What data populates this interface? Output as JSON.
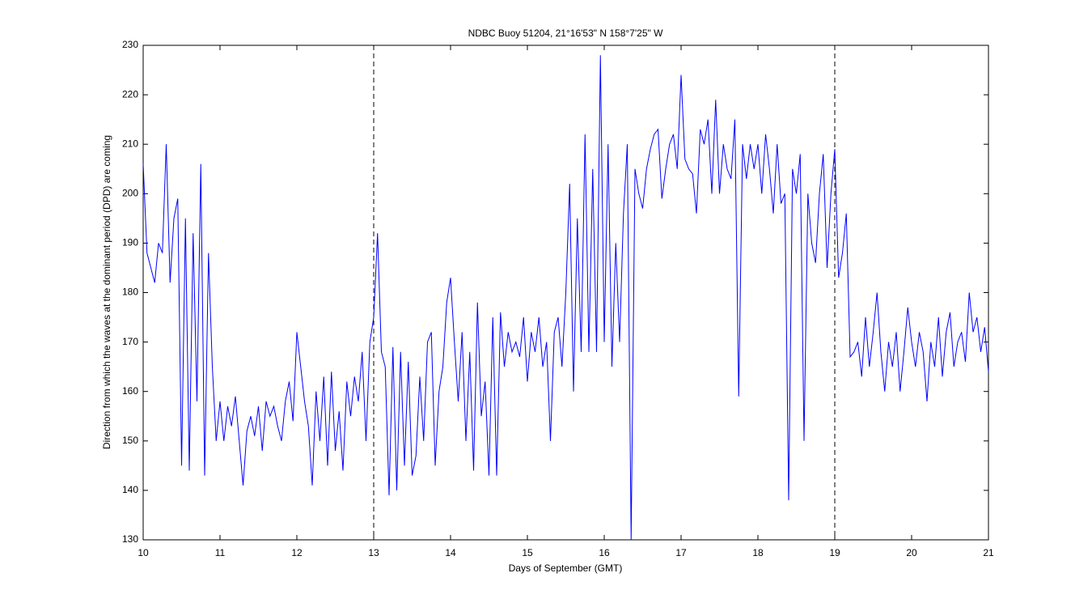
{
  "chart_data": {
    "type": "line",
    "title": "NDBC Buoy 51204, 21°16'53\" N 158°7'25\" W",
    "xlabel": "Days of September (GMT)",
    "ylabel": "Direction from which the waves at the dominant period (DPD) are coming",
    "color": "#0000ff",
    "xlim": [
      10,
      21
    ],
    "ylim": [
      130,
      230
    ],
    "xticks": [
      10,
      11,
      12,
      13,
      14,
      15,
      16,
      17,
      18,
      19,
      20,
      21
    ],
    "yticks": [
      130,
      140,
      150,
      160,
      170,
      180,
      190,
      200,
      210,
      220,
      230
    ],
    "vlines": [
      13,
      19
    ],
    "x": [
      10.0,
      10.05,
      10.1,
      10.15,
      10.2,
      10.25,
      10.3,
      10.35,
      10.4,
      10.45,
      10.5,
      10.55,
      10.6,
      10.65,
      10.7,
      10.75,
      10.8,
      10.85,
      10.9,
      10.95,
      11.0,
      11.05,
      11.1,
      11.15,
      11.2,
      11.25,
      11.3,
      11.35,
      11.4,
      11.45,
      11.5,
      11.55,
      11.6,
      11.65,
      11.7,
      11.75,
      11.8,
      11.85,
      11.9,
      11.95,
      12.0,
      12.05,
      12.1,
      12.15,
      12.2,
      12.25,
      12.3,
      12.35,
      12.4,
      12.45,
      12.5,
      12.55,
      12.6,
      12.65,
      12.7,
      12.75,
      12.8,
      12.85,
      12.9,
      12.95,
      13.0,
      13.05,
      13.1,
      13.15,
      13.2,
      13.25,
      13.3,
      13.35,
      13.4,
      13.45,
      13.5,
      13.55,
      13.6,
      13.65,
      13.7,
      13.75,
      13.8,
      13.85,
      13.9,
      13.95,
      14.0,
      14.05,
      14.1,
      14.15,
      14.2,
      14.25,
      14.3,
      14.35,
      14.4,
      14.45,
      14.5,
      14.55,
      14.6,
      14.65,
      14.7,
      14.75,
      14.8,
      14.85,
      14.9,
      14.95,
      15.0,
      15.05,
      15.1,
      15.15,
      15.2,
      15.25,
      15.3,
      15.35,
      15.4,
      15.45,
      15.5,
      15.55,
      15.6,
      15.65,
      15.7,
      15.75,
      15.8,
      15.85,
      15.9,
      15.95,
      16.0,
      16.05,
      16.1,
      16.15,
      16.2,
      16.25,
      16.3,
      16.35,
      16.4,
      16.45,
      16.5,
      16.55,
      16.6,
      16.65,
      16.7,
      16.75,
      16.8,
      16.85,
      16.9,
      16.95,
      17.0,
      17.05,
      17.1,
      17.15,
      17.2,
      17.25,
      17.3,
      17.35,
      17.4,
      17.45,
      17.5,
      17.55,
      17.6,
      17.65,
      17.7,
      17.75,
      17.8,
      17.85,
      17.9,
      17.95,
      18.0,
      18.05,
      18.1,
      18.15,
      18.2,
      18.25,
      18.3,
      18.35,
      18.4,
      18.45,
      18.5,
      18.55,
      18.6,
      18.65,
      18.7,
      18.75,
      18.8,
      18.85,
      18.9,
      18.95,
      19.0,
      19.05,
      19.1,
      19.15,
      19.2,
      19.25,
      19.3,
      19.35,
      19.4,
      19.45,
      19.5,
      19.55,
      19.6,
      19.65,
      19.7,
      19.75,
      19.8,
      19.85,
      19.9,
      19.95,
      20.0,
      20.05,
      20.1,
      20.15,
      20.2,
      20.25,
      20.3,
      20.35,
      20.4,
      20.45,
      20.5,
      20.55,
      20.6,
      20.65,
      20.7,
      20.75,
      20.8,
      20.85,
      20.9,
      20.95,
      21.0
    ],
    "values": [
      206,
      188,
      185,
      182,
      190,
      188,
      210,
      182,
      195,
      199,
      145,
      195,
      144,
      192,
      158,
      206,
      143,
      188,
      165,
      150,
      158,
      150,
      157,
      153,
      159,
      150,
      141,
      152,
      155,
      151,
      157,
      148,
      158,
      155,
      157,
      153,
      150,
      158,
      162,
      154,
      172,
      165,
      158,
      153,
      141,
      160,
      150,
      163,
      145,
      164,
      148,
      156,
      144,
      162,
      155,
      163,
      158,
      168,
      150,
      170,
      175,
      192,
      168,
      165,
      139,
      169,
      140,
      168,
      145,
      166,
      143,
      147,
      163,
      150,
      170,
      172,
      145,
      160,
      165,
      178,
      183,
      170,
      158,
      172,
      150,
      168,
      144,
      178,
      155,
      162,
      143,
      175,
      143,
      176,
      165,
      172,
      168,
      170,
      167,
      175,
      162,
      172,
      168,
      175,
      165,
      170,
      150,
      172,
      175,
      165,
      180,
      202,
      160,
      195,
      168,
      212,
      168,
      205,
      168,
      228,
      170,
      210,
      165,
      190,
      170,
      196,
      210,
      130,
      205,
      200,
      197,
      205,
      209,
      212,
      213,
      199,
      205,
      210,
      212,
      205,
      224,
      207,
      205,
      204,
      196,
      213,
      210,
      215,
      200,
      219,
      200,
      210,
      205,
      203,
      215,
      159,
      210,
      203,
      210,
      205,
      210,
      200,
      212,
      205,
      196,
      210,
      198,
      200,
      138,
      205,
      200,
      208,
      150,
      200,
      190,
      186,
      200,
      208,
      185,
      200,
      209,
      183,
      188,
      196,
      167,
      168,
      170,
      163,
      175,
      165,
      172,
      180,
      168,
      160,
      170,
      165,
      172,
      160,
      168,
      177,
      170,
      165,
      172,
      168,
      158,
      170,
      165,
      175,
      163,
      172,
      176,
      165,
      170,
      172,
      166,
      180,
      172,
      175,
      168,
      173,
      164
    ]
  }
}
